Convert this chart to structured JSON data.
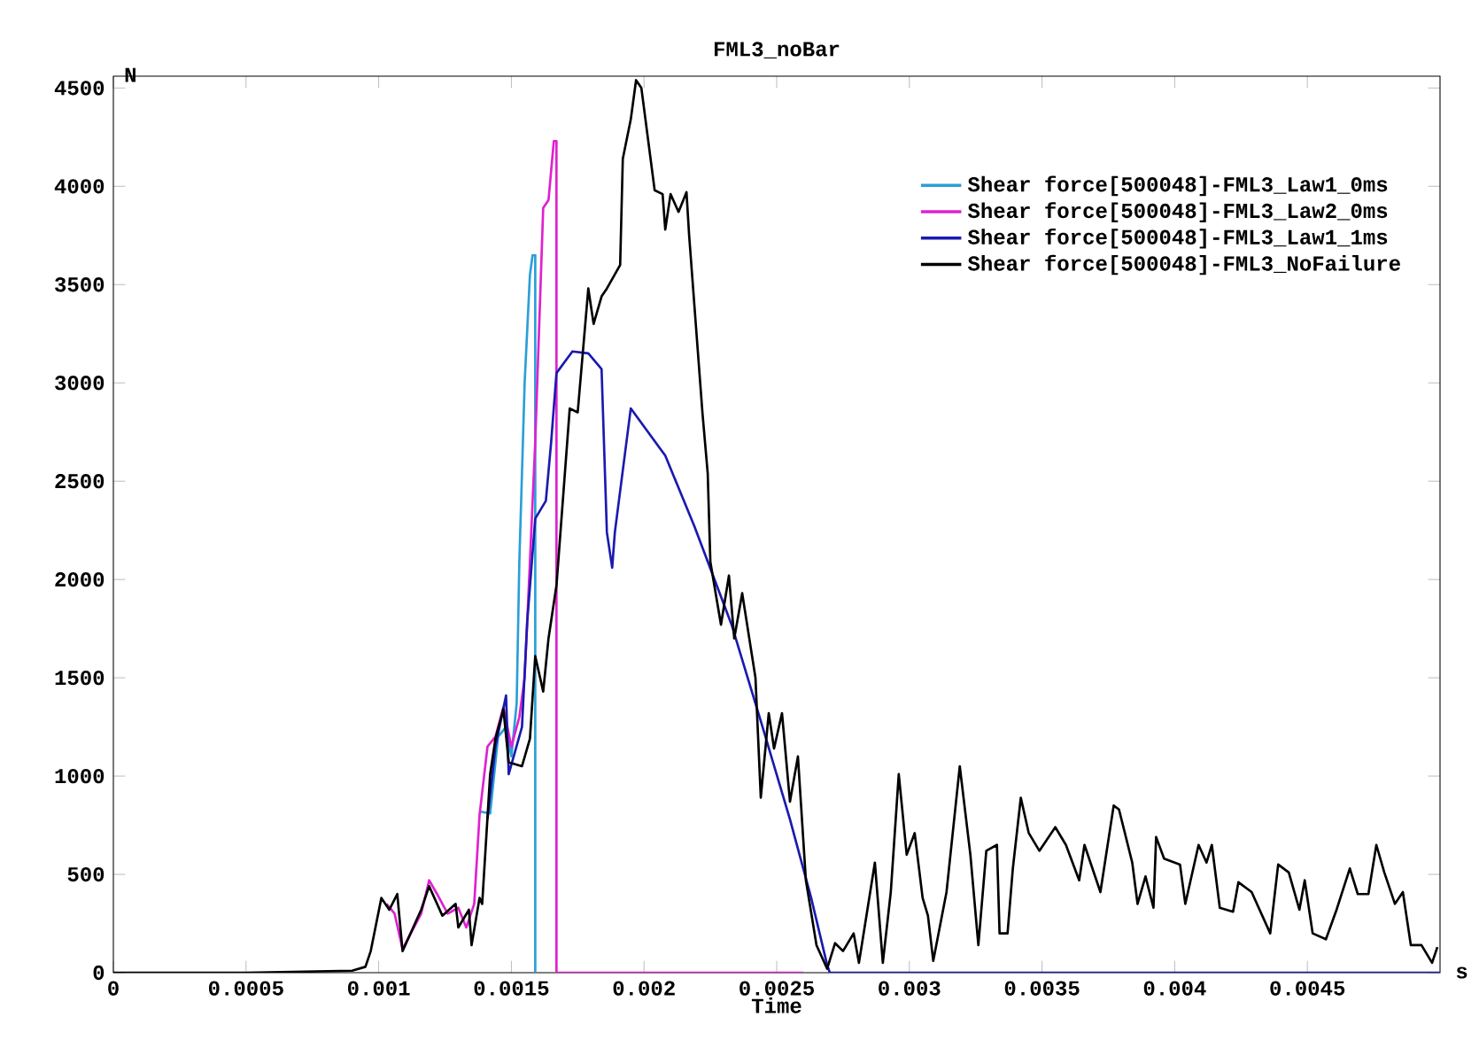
{
  "chart_data": {
    "type": "line",
    "title": "FML3_noBar",
    "xlabel": "Time",
    "ylabel": "N",
    "annotations": [
      "s"
    ],
    "xlim": [
      0,
      0.005
    ],
    "ylim": [
      0,
      4560
    ],
    "xticks": [
      0,
      0.0005,
      0.001,
      0.0015,
      0.002,
      0.0025,
      0.003,
      0.0035,
      0.004,
      0.0045
    ],
    "yticks": [
      0,
      500,
      1000,
      1500,
      2000,
      2500,
      3000,
      3500,
      4000,
      4500
    ],
    "grid": false,
    "legend": "top right",
    "marker": "none",
    "line_style": "solid",
    "series": [
      {
        "name": "Shear force[500048]-FML3_Law1_0ms",
        "color": "#2a9fd8",
        "x": [
          0.00138,
          0.00142,
          0.00145,
          0.00148,
          0.0015,
          0.00152,
          0.00153,
          0.00154,
          0.00155,
          0.00157,
          0.00158,
          0.00159,
          0.00159
        ],
        "values": [
          820,
          810,
          1200,
          1250,
          1100,
          1370,
          2090,
          2540,
          3000,
          3550,
          3650,
          3650,
          0
        ]
      },
      {
        "name": "Shear force[500048]-FML3_Law2_0ms",
        "color": "#e020d0",
        "x": [
          0.00103,
          0.00106,
          0.00109,
          0.00116,
          0.00119,
          0.00122,
          0.00126,
          0.0013,
          0.00133,
          0.00136,
          0.00138,
          0.00141,
          0.00144,
          0.00147,
          0.0015,
          0.00153,
          0.00155,
          0.00157,
          0.00159,
          0.00162,
          0.00164,
          0.00166,
          0.00167,
          0.00167,
          0.0026
        ],
        "values": [
          350,
          300,
          120,
          300,
          470,
          400,
          300,
          330,
          230,
          350,
          800,
          1150,
          1200,
          1350,
          1150,
          1300,
          1500,
          2090,
          2700,
          3890,
          3930,
          4230,
          4230,
          0,
          0
        ]
      },
      {
        "name": "Shear force[500048]-FML3_Law1_1ms",
        "color": "#1a1ab0",
        "x": [
          0.00141,
          0.00144,
          0.00148,
          0.00149,
          0.00154,
          0.00156,
          0.00159,
          0.00163,
          0.00165,
          0.00167,
          0.00173,
          0.00179,
          0.00184,
          0.00186,
          0.00188,
          0.00189,
          0.00195,
          0.00208,
          0.00219,
          0.00233,
          0.00244,
          0.00255,
          0.00263,
          0.00269,
          0.0027,
          0.005
        ],
        "values": [
          780,
          1150,
          1410,
          1010,
          1250,
          1790,
          2310,
          2400,
          2700,
          3050,
          3160,
          3150,
          3070,
          2240,
          2060,
          2240,
          2870,
          2630,
          2270,
          1770,
          1280,
          780,
          380,
          40,
          0,
          0
        ]
      },
      {
        "name": "Shear force[500048]-FML3_NoFailure",
        "color": "#000000",
        "x": [
          0,
          0.0005,
          0.0009,
          0.00095,
          0.00097,
          0.00101,
          0.00104,
          0.00107,
          0.00109,
          0.00116,
          0.00119,
          0.00124,
          0.00129,
          0.0013,
          0.00134,
          0.00135,
          0.00138,
          0.00139,
          0.00142,
          0.00144,
          0.00147,
          0.00149,
          0.00154,
          0.00157,
          0.00159,
          0.00162,
          0.00164,
          0.00167,
          0.00171,
          0.00172,
          0.00175,
          0.00179,
          0.00181,
          0.00184,
          0.00186,
          0.00191,
          0.00192,
          0.00195,
          0.00197,
          0.00199,
          0.00204,
          0.00207,
          0.00208,
          0.0021,
          0.00213,
          0.00216,
          0.00217,
          0.00222,
          0.00224,
          0.00225,
          0.00229,
          0.00232,
          0.00234,
          0.00237,
          0.00242,
          0.00244,
          0.00247,
          0.00249,
          0.00252,
          0.00255,
          0.00258,
          0.00261,
          0.00265,
          0.00269,
          0.00272,
          0.00275,
          0.00279,
          0.00281,
          0.00283,
          0.00287,
          0.0029,
          0.00293,
          0.00296,
          0.00299,
          0.00302,
          0.00305,
          0.00307,
          0.00309,
          0.00314,
          0.00319,
          0.00323,
          0.00326,
          0.00329,
          0.00333,
          0.00334,
          0.00337,
          0.00339,
          0.00342,
          0.00345,
          0.00349,
          0.00355,
          0.00359,
          0.00364,
          0.00366,
          0.00372,
          0.00377,
          0.00379,
          0.00384,
          0.00386,
          0.00389,
          0.00392,
          0.00393,
          0.00396,
          0.00402,
          0.00404,
          0.00409,
          0.00412,
          0.00414,
          0.00417,
          0.00422,
          0.00424,
          0.00429,
          0.00436,
          0.00439,
          0.00443,
          0.00447,
          0.00449,
          0.00452,
          0.00457,
          0.00461,
          0.00466,
          0.00469,
          0.00473,
          0.00476,
          0.00479,
          0.00483,
          0.00486,
          0.00489,
          0.00493,
          0.00497,
          0.00499
        ],
        "values": [
          0,
          0,
          10,
          30,
          110,
          380,
          320,
          400,
          110,
          320,
          440,
          290,
          350,
          230,
          320,
          140,
          380,
          350,
          1010,
          1190,
          1340,
          1070,
          1050,
          1190,
          1610,
          1430,
          1700,
          1970,
          2690,
          2870,
          2850,
          3480,
          3300,
          3440,
          3480,
          3600,
          4140,
          4340,
          4540,
          4500,
          3980,
          3960,
          3780,
          3960,
          3870,
          3970,
          3750,
          2850,
          2540,
          2090,
          1770,
          2020,
          1700,
          1930,
          1500,
          890,
          1320,
          1140,
          1320,
          870,
          1100,
          470,
          140,
          20,
          150,
          110,
          200,
          50,
          220,
          560,
          50,
          410,
          1010,
          600,
          710,
          380,
          290,
          60,
          410,
          1050,
          600,
          140,
          620,
          650,
          200,
          200,
          530,
          890,
          710,
          620,
          740,
          650,
          470,
          650,
          410,
          850,
          830,
          560,
          350,
          490,
          330,
          690,
          580,
          550,
          350,
          650,
          560,
          650,
          330,
          310,
          460,
          410,
          200,
          550,
          510,
          320,
          470,
          200,
          170,
          320,
          530,
          400,
          400,
          650,
          510,
          350,
          410,
          140,
          140,
          50,
          130
        ]
      }
    ]
  }
}
